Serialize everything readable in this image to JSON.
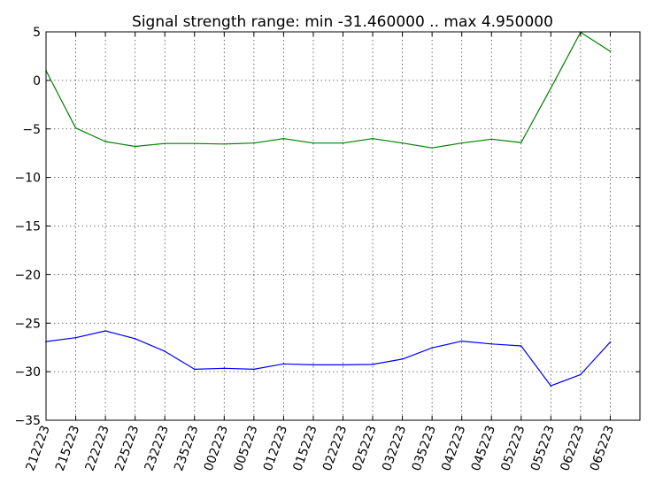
{
  "chart_data": {
    "type": "line",
    "title": "Signal strength range: min -31.460000 .. max 4.950000",
    "xlabel": "",
    "ylabel": "",
    "ylim": [
      -35,
      5
    ],
    "yticks": [
      5,
      0,
      -5,
      -10,
      -15,
      -20,
      -25,
      -30,
      -35
    ],
    "grid": true,
    "categories": [
      "212223",
      "215223",
      "222223",
      "225223",
      "232223",
      "235223",
      "002223",
      "005223",
      "012223",
      "015223",
      "022223",
      "025223",
      "032223",
      "035223",
      "042223",
      "045223",
      "052223",
      "055223",
      "062223",
      "065223"
    ],
    "series": [
      {
        "color": "#007f00",
        "values": [
          1.0,
          -4.9,
          -6.3,
          -6.8,
          -6.5,
          -6.5,
          -6.55,
          -6.45,
          -6.0,
          -6.45,
          -6.45,
          -6.0,
          -6.45,
          -6.95,
          -6.45,
          -6.05,
          -6.4,
          -0.8,
          4.95,
          3.0
        ]
      },
      {
        "color": "#0000ff",
        "values": [
          -26.9,
          -26.5,
          -25.8,
          -26.6,
          -27.9,
          -29.75,
          -29.65,
          -29.75,
          -29.2,
          -29.3,
          -29.3,
          -29.25,
          -28.7,
          -27.55,
          -26.85,
          -27.15,
          -27.35,
          -31.46,
          -30.3,
          -26.95
        ]
      }
    ]
  }
}
